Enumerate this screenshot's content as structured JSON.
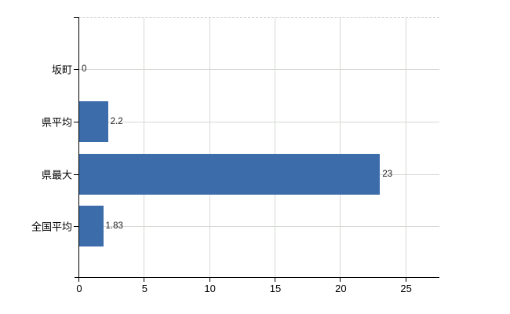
{
  "chart_data": {
    "type": "bar",
    "orientation": "horizontal",
    "title": "",
    "xlabel": "",
    "ylabel": "",
    "categories": [
      "坂町",
      "県平均",
      "県最大",
      "全国平均"
    ],
    "values": [
      0,
      2.2,
      23,
      1.83
    ],
    "value_labels": [
      "0",
      "2.2",
      "23",
      "1.83"
    ],
    "x_ticks": [
      0,
      5,
      10,
      15,
      20,
      25
    ],
    "xlim": [
      0,
      27.6
    ],
    "grid": true,
    "legend": false,
    "bar_color": "#3d6cab",
    "gridline_color": "#d5dad3",
    "axis_color": "#000000"
  }
}
